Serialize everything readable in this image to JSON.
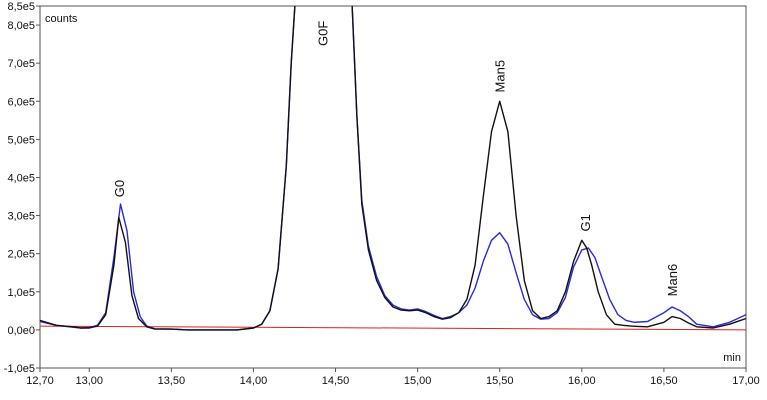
{
  "chart_data": {
    "type": "line",
    "unit_y": "counts",
    "unit_x": "min",
    "xlim": [
      12.7,
      17.0
    ],
    "ylim": [
      -100000,
      850000
    ],
    "x_ticks": [
      12.7,
      13.0,
      13.5,
      14.0,
      14.5,
      15.0,
      15.5,
      16.0,
      16.5,
      17.0
    ],
    "x_tick_labels": [
      "12,70",
      "13,00",
      "13,50",
      "14,00",
      "14,50",
      "15,00",
      "15,50",
      "16,00",
      "16,50",
      "17,00"
    ],
    "y_ticks": [
      -100000,
      0,
      100000,
      200000,
      300000,
      400000,
      500000,
      600000,
      700000,
      800000,
      850000
    ],
    "y_tick_labels": [
      "-1,0e5",
      "0,0e0",
      "1,0e5",
      "2,0e5",
      "3,0e5",
      "4,0e5",
      "5,0e5",
      "6,0e5",
      "7,0e5",
      "8,0e5",
      "8,5e5"
    ],
    "grid": false,
    "peak_labels": [
      {
        "text": "G0",
        "x": 13.18,
        "y": 335000
      },
      {
        "text": "G0F",
        "x": 14.42,
        "y": 850000
      },
      {
        "text": "Man5",
        "x": 15.5,
        "y": 610000
      },
      {
        "text": "G1",
        "x": 16.02,
        "y": 245000
      },
      {
        "text": "Man6",
        "x": 16.55,
        "y": 75000
      }
    ],
    "series": [
      {
        "color": "#111111",
        "x": [
          12.7,
          12.8,
          12.9,
          12.95,
          13.0,
          13.05,
          13.1,
          13.15,
          13.18,
          13.22,
          13.26,
          13.3,
          13.35,
          13.4,
          13.5,
          13.6,
          13.7,
          13.8,
          13.9,
          14.0,
          14.05,
          14.1,
          14.15,
          14.2,
          14.23,
          14.26,
          14.3,
          14.55,
          14.6,
          14.63,
          14.66,
          14.7,
          14.75,
          14.8,
          14.85,
          14.9,
          14.95,
          15.0,
          15.05,
          15.1,
          15.15,
          15.2,
          15.25,
          15.3,
          15.35,
          15.4,
          15.45,
          15.5,
          15.55,
          15.6,
          15.65,
          15.7,
          15.75,
          15.8,
          15.85,
          15.9,
          15.95,
          16.0,
          16.03,
          16.06,
          16.1,
          16.15,
          16.2,
          16.25,
          16.3,
          16.4,
          16.5,
          16.55,
          16.6,
          16.65,
          16.7,
          16.8,
          16.9,
          17.0
        ],
        "y": [
          25000,
          12000,
          8000,
          5000,
          5000,
          10000,
          40000,
          170000,
          295000,
          230000,
          90000,
          30000,
          8000,
          2000,
          2000,
          0,
          0,
          0,
          0,
          5000,
          15000,
          50000,
          160000,
          430000,
          700000,
          900000,
          950000,
          950000,
          860000,
          560000,
          330000,
          210000,
          130000,
          85000,
          60000,
          52000,
          50000,
          52000,
          45000,
          35000,
          28000,
          32000,
          45000,
          80000,
          170000,
          350000,
          520000,
          600000,
          520000,
          300000,
          130000,
          50000,
          30000,
          35000,
          50000,
          100000,
          180000,
          235000,
          215000,
          170000,
          100000,
          40000,
          15000,
          12000,
          10000,
          8000,
          20000,
          35000,
          30000,
          18000,
          8000,
          5000,
          15000,
          30000
        ]
      },
      {
        "color": "#2a2adc",
        "x": [
          12.7,
          12.8,
          12.9,
          12.95,
          13.0,
          13.05,
          13.1,
          13.15,
          13.19,
          13.23,
          13.27,
          13.31,
          13.35,
          13.4,
          13.5,
          13.6,
          13.7,
          13.8,
          13.9,
          14.0,
          14.05,
          14.1,
          14.15,
          14.2,
          14.23,
          14.26,
          14.3,
          14.55,
          14.6,
          14.63,
          14.66,
          14.7,
          14.75,
          14.8,
          14.85,
          14.9,
          14.95,
          15.0,
          15.05,
          15.1,
          15.15,
          15.2,
          15.25,
          15.3,
          15.35,
          15.4,
          15.45,
          15.5,
          15.55,
          15.6,
          15.65,
          15.7,
          15.75,
          15.8,
          15.85,
          15.9,
          15.95,
          16.0,
          16.04,
          16.08,
          16.12,
          16.17,
          16.22,
          16.27,
          16.32,
          16.4,
          16.5,
          16.55,
          16.6,
          16.65,
          16.7,
          16.8,
          16.9,
          17.0
        ],
        "y": [
          22000,
          12000,
          7000,
          5000,
          6000,
          12000,
          45000,
          190000,
          330000,
          260000,
          100000,
          35000,
          10000,
          3000,
          2000,
          0,
          0,
          0,
          0,
          5000,
          15000,
          50000,
          160000,
          430000,
          700000,
          900000,
          950000,
          950000,
          860000,
          560000,
          340000,
          220000,
          140000,
          90000,
          65000,
          55000,
          52000,
          55000,
          48000,
          38000,
          30000,
          35000,
          45000,
          65000,
          110000,
          180000,
          235000,
          255000,
          225000,
          150000,
          80000,
          40000,
          28000,
          30000,
          45000,
          85000,
          165000,
          210000,
          215000,
          190000,
          140000,
          80000,
          40000,
          25000,
          20000,
          22000,
          45000,
          60000,
          50000,
          35000,
          15000,
          8000,
          20000,
          40000
        ]
      },
      {
        "color": "#dd2020",
        "x": [
          12.7,
          17.0
        ],
        "y": [
          10000,
          0
        ]
      }
    ]
  }
}
